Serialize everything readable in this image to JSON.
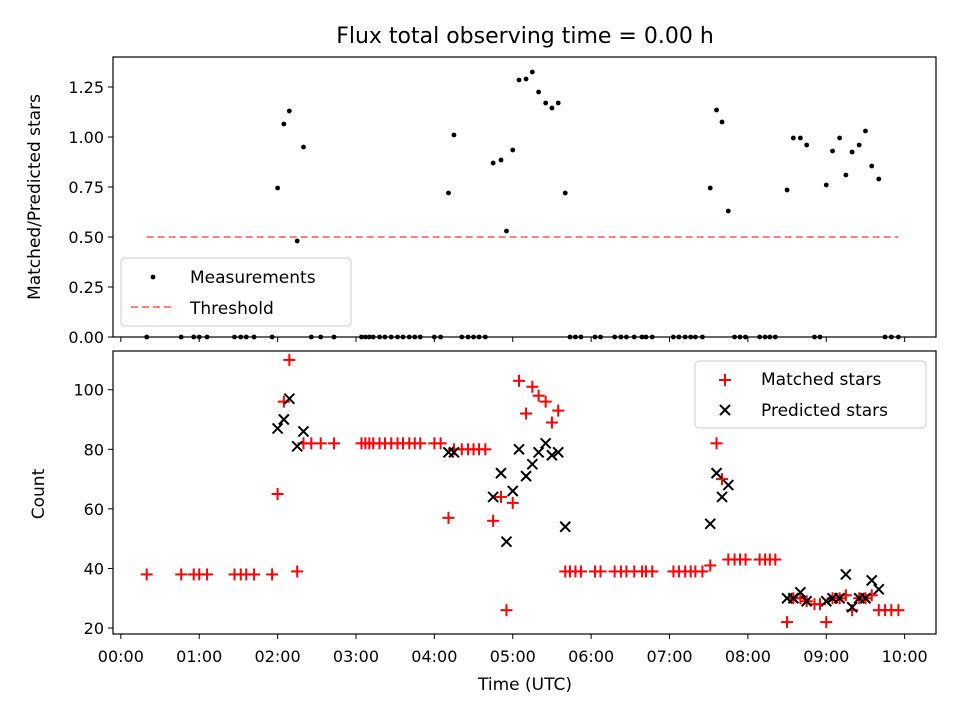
{
  "chart_data": [
    {
      "type": "scatter",
      "title": "Flux total observing time = 0.00 h",
      "ylabel": "Matched/Predicted stars",
      "xlabel": "",
      "xlim_hours": [
        -0.1,
        10.4
      ],
      "ylim": [
        0,
        1.4
      ],
      "yticks": [
        0.0,
        0.25,
        0.5,
        0.75,
        1.0,
        1.25
      ],
      "ytick_labels": [
        "0.00",
        "0.25",
        "0.50",
        "0.75",
        "1.00",
        "1.25"
      ],
      "legend_position": "lower-left",
      "grid": false,
      "series": [
        {
          "name": "Measurements",
          "marker": "dot",
          "color": "#000000",
          "x_hours": [
            0.33,
            0.77,
            0.93,
            1.0,
            1.1,
            1.45,
            1.53,
            1.6,
            1.7,
            1.93,
            2.0,
            2.08,
            2.15,
            2.25,
            2.33,
            2.43,
            2.55,
            2.72,
            3.07,
            3.12,
            3.17,
            3.22,
            3.3,
            3.37,
            3.45,
            3.53,
            3.6,
            3.68,
            3.75,
            3.82,
            4.0,
            4.08,
            4.18,
            4.25,
            4.35,
            4.43,
            4.5,
            4.57,
            4.65,
            4.75,
            4.85,
            4.92,
            5.0,
            5.08,
            5.17,
            5.25,
            5.33,
            5.42,
            5.5,
            5.58,
            5.67,
            5.73,
            5.8,
            5.87,
            6.05,
            6.12,
            6.3,
            6.38,
            6.45,
            6.55,
            6.65,
            6.7,
            6.78,
            7.05,
            7.12,
            7.2,
            7.27,
            7.33,
            7.42,
            7.52,
            7.6,
            7.67,
            7.75,
            7.83,
            7.9,
            7.97,
            8.15,
            8.22,
            8.28,
            8.35,
            8.5,
            8.58,
            8.67,
            8.75,
            8.85,
            8.92,
            9.0,
            9.08,
            9.17,
            9.25,
            9.33,
            9.42,
            9.5,
            9.58,
            9.67,
            9.75,
            9.83,
            9.92
          ],
          "y": [
            0,
            0,
            0,
            0,
            0,
            0,
            0,
            0,
            0,
            0,
            0.745,
            1.065,
            1.13,
            0.48,
            0.95,
            0,
            0,
            0,
            0,
            0,
            0,
            0,
            0,
            0,
            0,
            0,
            0,
            0,
            0,
            0,
            0,
            0,
            0.72,
            1.01,
            0,
            0,
            0,
            0,
            0,
            0.87,
            0.885,
            0.53,
            0.935,
            1.285,
            1.29,
            1.325,
            1.225,
            1.17,
            1.145,
            1.17,
            0.72,
            0,
            0,
            0,
            0,
            0,
            0,
            0,
            0,
            0,
            0,
            0,
            0,
            0,
            0,
            0,
            0,
            0,
            0,
            0.745,
            1.135,
            1.075,
            0.63,
            0,
            0,
            0,
            0,
            0,
            0,
            0,
            0.735,
            0.995,
            0.995,
            0.96,
            0,
            0,
            0.76,
            0.93,
            0.995,
            0.81,
            0.925,
            0.96,
            1.03,
            0.855,
            0.79,
            0,
            0,
            0
          ]
        },
        {
          "name": "Threshold",
          "marker": "dashed-line",
          "color": "#ff7f7f",
          "x_hours": [
            0.33,
            9.92
          ],
          "y": [
            0.5,
            0.5
          ]
        }
      ]
    },
    {
      "type": "scatter",
      "title": "",
      "ylabel": "Count",
      "xlabel": "Time (UTC)",
      "xlim_hours": [
        -0.1,
        10.4
      ],
      "ylim": [
        18,
        113
      ],
      "yticks": [
        20,
        40,
        60,
        80,
        100
      ],
      "ytick_labels": [
        "20",
        "40",
        "60",
        "80",
        "100"
      ],
      "xticks_hours": [
        0,
        1,
        2,
        3,
        4,
        5,
        6,
        7,
        8,
        9,
        10
      ],
      "xtick_labels": [
        "00:00",
        "01:00",
        "02:00",
        "03:00",
        "04:00",
        "05:00",
        "06:00",
        "07:00",
        "08:00",
        "09:00",
        "10:00"
      ],
      "legend_position": "upper-right",
      "grid": false,
      "series": [
        {
          "name": "Matched stars",
          "marker": "plus",
          "color": "#ff0000",
          "x_hours": [
            0.33,
            0.77,
            0.93,
            1.0,
            1.1,
            1.45,
            1.53,
            1.6,
            1.7,
            1.93,
            2.0,
            2.08,
            2.15,
            2.25,
            2.33,
            2.43,
            2.55,
            2.72,
            3.07,
            3.12,
            3.17,
            3.22,
            3.3,
            3.37,
            3.45,
            3.53,
            3.6,
            3.68,
            3.75,
            3.82,
            4.0,
            4.08,
            4.18,
            4.25,
            4.35,
            4.43,
            4.5,
            4.57,
            4.65,
            4.75,
            4.85,
            4.92,
            5.0,
            5.08,
            5.17,
            5.25,
            5.33,
            5.42,
            5.5,
            5.58,
            5.67,
            5.73,
            5.8,
            5.87,
            6.05,
            6.12,
            6.3,
            6.38,
            6.45,
            6.55,
            6.65,
            6.7,
            6.78,
            7.05,
            7.12,
            7.2,
            7.27,
            7.33,
            7.42,
            7.52,
            7.6,
            7.67,
            7.75,
            7.83,
            7.9,
            7.97,
            8.15,
            8.22,
            8.28,
            8.35,
            8.5,
            8.58,
            8.67,
            8.75,
            8.85,
            8.92,
            9.0,
            9.08,
            9.17,
            9.25,
            9.33,
            9.42,
            9.5,
            9.58,
            9.67,
            9.75,
            9.83,
            9.92
          ],
          "y": [
            38,
            38,
            38,
            38,
            38,
            38,
            38,
            38,
            38,
            38,
            65,
            96,
            110,
            39,
            82,
            82,
            82,
            82,
            82,
            82,
            82,
            82,
            82,
            82,
            82,
            82,
            82,
            82,
            82,
            82,
            82,
            82,
            57,
            80,
            80,
            80,
            80,
            80,
            80,
            56,
            64,
            26,
            62,
            103,
            92,
            101,
            98,
            96,
            89,
            93,
            39,
            39,
            39,
            39,
            39,
            39,
            39,
            39,
            39,
            39,
            39,
            39,
            39,
            39,
            39,
            39,
            39,
            39,
            39,
            41,
            82,
            70,
            43,
            43,
            43,
            43,
            43,
            43,
            43,
            43,
            22,
            30,
            30,
            29,
            28,
            28,
            22,
            30,
            30,
            31,
            26,
            30,
            30,
            31,
            26,
            26,
            26,
            26
          ]
        },
        {
          "name": "Predicted stars",
          "marker": "x",
          "color": "#000000",
          "x_hours": [
            2.0,
            2.08,
            2.15,
            2.25,
            2.33,
            4.18,
            4.25,
            4.75,
            4.85,
            4.92,
            5.0,
            5.08,
            5.17,
            5.25,
            5.33,
            5.42,
            5.5,
            5.58,
            5.67,
            7.52,
            7.6,
            7.67,
            7.75,
            8.5,
            8.58,
            8.67,
            8.75,
            9.0,
            9.08,
            9.17,
            9.25,
            9.33,
            9.42,
            9.5,
            9.58,
            9.67
          ],
          "y": [
            87,
            90,
            97,
            81,
            86,
            79,
            79,
            64,
            72,
            49,
            66,
            80,
            71,
            75,
            79,
            82,
            78,
            79,
            54,
            55,
            72,
            64,
            68,
            30,
            30,
            32,
            29,
            29,
            30,
            30,
            38,
            27,
            30,
            30,
            36,
            33
          ]
        }
      ]
    }
  ]
}
